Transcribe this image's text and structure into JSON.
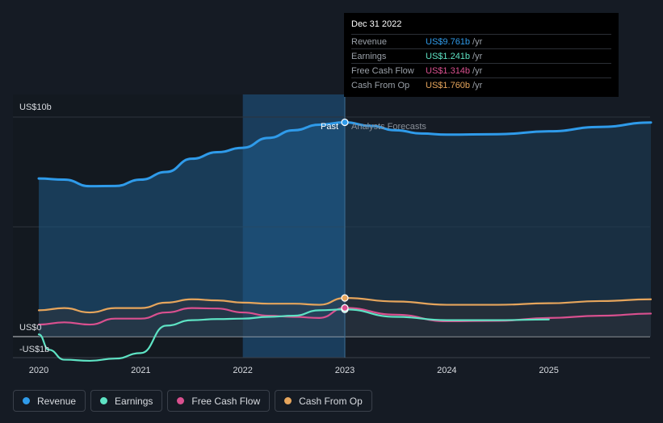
{
  "chart_data": {
    "type": "line",
    "x_ticks": [
      "2020",
      "2021",
      "2022",
      "2023",
      "2024",
      "2025"
    ],
    "x_tick_values": [
      2020,
      2021,
      2022,
      2023,
      2024,
      2025
    ],
    "xlim": [
      2019.8,
      2026.0
    ],
    "ylim": [
      -1.3,
      10.2
    ],
    "y_labels": [
      {
        "text": "US$10b",
        "value": 10
      },
      {
        "text": "US$0",
        "value": 0
      },
      {
        "text": "-US$1b",
        "value": -1
      }
    ],
    "divider_x": 2023.0,
    "past_label": "Past",
    "forecast_label": "Analysts Forecasts",
    "series": [
      {
        "name": "Revenue",
        "color": "#2f9bea",
        "x": [
          2020.0,
          2020.25,
          2020.5,
          2020.75,
          2021.0,
          2021.25,
          2021.5,
          2021.75,
          2022.0,
          2022.25,
          2022.5,
          2022.75,
          2023.0,
          2023.25,
          2023.5,
          2023.75,
          2024.0,
          2024.5,
          2025.0,
          2025.5,
          2026.0
        ],
        "y": [
          7.2,
          7.15,
          6.85,
          6.86,
          7.15,
          7.5,
          8.1,
          8.4,
          8.6,
          9.05,
          9.4,
          9.65,
          9.76,
          9.6,
          9.4,
          9.25,
          9.2,
          9.22,
          9.35,
          9.55,
          9.75
        ]
      },
      {
        "name": "Earnings",
        "color": "#5ee3c4",
        "x": [
          2020.0,
          2020.1,
          2020.25,
          2020.5,
          2020.75,
          2021.0,
          2021.25,
          2021.5,
          2021.75,
          2022.0,
          2022.25,
          2022.5,
          2022.75,
          2023.0,
          2023.5,
          2024.0,
          2024.5,
          2025.0
        ],
        "y": [
          0.1,
          -0.6,
          -1.05,
          -1.1,
          -1.0,
          -0.75,
          0.5,
          0.75,
          0.8,
          0.82,
          0.9,
          0.95,
          1.2,
          1.24,
          0.9,
          0.75,
          0.75,
          0.78
        ]
      },
      {
        "name": "Free Cash Flow",
        "color": "#d9508f",
        "x": [
          2020.0,
          2020.25,
          2020.5,
          2020.75,
          2021.0,
          2021.25,
          2021.5,
          2021.75,
          2022.0,
          2022.25,
          2022.5,
          2022.75,
          2023.0,
          2023.5,
          2024.0,
          2024.5,
          2025.0,
          2025.5,
          2026.0
        ],
        "y": [
          0.55,
          0.65,
          0.55,
          0.82,
          0.82,
          1.1,
          1.3,
          1.28,
          1.1,
          0.95,
          0.9,
          0.85,
          1.31,
          1.0,
          0.7,
          0.72,
          0.85,
          0.95,
          1.05
        ]
      },
      {
        "name": "Cash From Op",
        "color": "#e6a55c",
        "x": [
          2020.0,
          2020.25,
          2020.5,
          2020.75,
          2021.0,
          2021.25,
          2021.5,
          2021.75,
          2022.0,
          2022.25,
          2022.5,
          2022.75,
          2023.0,
          2023.5,
          2024.0,
          2024.5,
          2025.0,
          2025.5,
          2026.0
        ],
        "y": [
          1.2,
          1.3,
          1.1,
          1.3,
          1.3,
          1.55,
          1.7,
          1.65,
          1.55,
          1.5,
          1.5,
          1.45,
          1.76,
          1.6,
          1.45,
          1.45,
          1.52,
          1.62,
          1.7
        ]
      }
    ],
    "tooltip": {
      "date": "Dec 31 2022",
      "rows": [
        {
          "label": "Revenue",
          "value": "US$9.761b",
          "unit": "/yr",
          "color": "#2f9bea"
        },
        {
          "label": "Earnings",
          "value": "US$1.241b",
          "unit": "/yr",
          "color": "#5ee3c4"
        },
        {
          "label": "Free Cash Flow",
          "value": "US$1.314b",
          "unit": "/yr",
          "color": "#d9508f"
        },
        {
          "label": "Cash From Op",
          "value": "US$1.760b",
          "unit": "/yr",
          "color": "#e6a55c"
        }
      ]
    },
    "legend": [
      {
        "label": "Revenue",
        "color": "#2f9bea"
      },
      {
        "label": "Earnings",
        "color": "#5ee3c4"
      },
      {
        "label": "Free Cash Flow",
        "color": "#d9508f"
      },
      {
        "label": "Cash From Op",
        "color": "#e6a55c"
      }
    ]
  }
}
